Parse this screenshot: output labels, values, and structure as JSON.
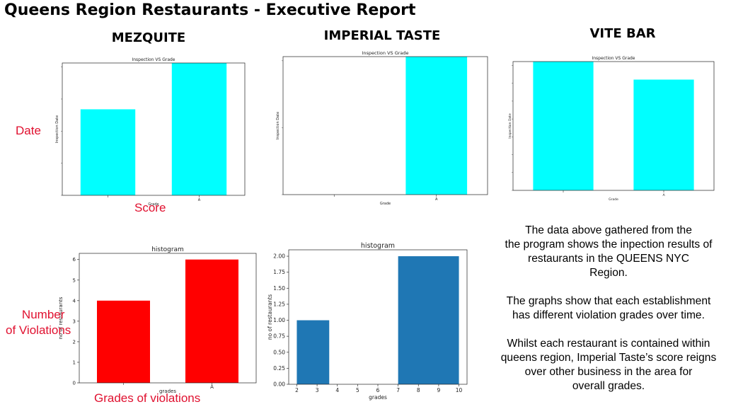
{
  "report_title": "Queens Region Restaurants  - Executive Report",
  "restaurants": [
    "MEZQUITE",
    "IMPERIAL TASTE",
    "VITE BAR"
  ],
  "annotations": {
    "date": "Date",
    "score": "Score",
    "number_of_violations": [
      "Number",
      "of Violations"
    ],
    "grades_of_violations": "Grades of violations"
  },
  "summary": [
    [
      "The data above gathered from the",
      "the program shows the inpection results of",
      "restaurants in the QUEENS NYC",
      "Region."
    ],
    [
      "The graphs show that each establishment",
      "has different violation grades over time."
    ],
    [
      "Whilst each restaurant is contained within",
      "queens region, Imperial Taste’s score reigns",
      "over other business in the area for",
      "overall grades."
    ]
  ],
  "colors": {
    "cyan": "#00ffff",
    "red": "#ff0000",
    "blue": "#1f77b4",
    "annotation": "#e0102f"
  },
  "chart_data": [
    {
      "id": "mezquite-inspection",
      "type": "bar",
      "title": "Inspection VS Grade",
      "ylabel": "Inspection Date",
      "xlabel": "Grade",
      "categories": [
        "",
        "A"
      ],
      "values": [
        0.65,
        1.0
      ],
      "ylim": [
        0,
        1
      ],
      "color": "#00ffff"
    },
    {
      "id": "imperial-inspection",
      "type": "bar",
      "title": "Inspection VS Grade",
      "ylabel": "Inspection Date",
      "xlabel": "Grade",
      "categories": [
        "",
        "A"
      ],
      "values": [
        0,
        1.0
      ],
      "ylim": [
        0,
        1
      ],
      "color": "#00ffff"
    },
    {
      "id": "vitebar-inspection",
      "type": "bar",
      "title": "Inspection VS Grade",
      "ylabel": "Inspection Date",
      "xlabel": "Grade",
      "categories": [
        "",
        "A"
      ],
      "values": [
        1.0,
        0.86
      ],
      "ylim": [
        0,
        1
      ],
      "color": "#00ffff"
    },
    {
      "id": "mezquite-histogram",
      "type": "bar",
      "title": "histogram",
      "ylabel": "no of restaurants",
      "xlabel": "grades",
      "categories": [
        "",
        "A"
      ],
      "values": [
        4,
        6
      ],
      "ylim": [
        0,
        6.3
      ],
      "yticks": [
        0,
        1,
        2,
        3,
        4,
        5,
        6
      ],
      "color": "#ff0000"
    },
    {
      "id": "imperial-histogram",
      "type": "bar",
      "title": "histogram",
      "ylabel": "no of restaurants",
      "xlabel": "grades",
      "bins": [
        [
          2,
          3.6,
          1
        ],
        [
          7,
          10,
          2
        ]
      ],
      "xlim": [
        1.6,
        10.4
      ],
      "xticks": [
        2,
        3,
        4,
        5,
        6,
        7,
        8,
        9,
        10
      ],
      "ylim": [
        0,
        2.1
      ],
      "yticks": [
        "0.00",
        "0.25",
        "0.50",
        "0.75",
        "1.00",
        "1.25",
        "1.50",
        "1.75",
        "2.00"
      ],
      "color": "#1f77b4"
    }
  ]
}
